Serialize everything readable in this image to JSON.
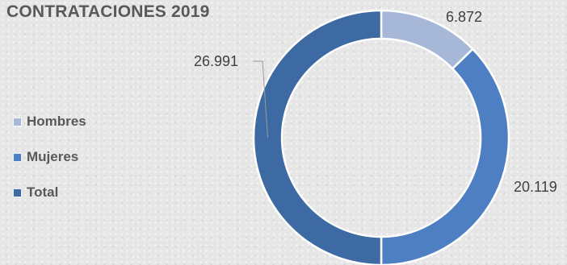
{
  "chart_data": {
    "type": "pie",
    "variant": "donut",
    "title": "CONTRATACIONES 2019",
    "categories": [
      "Hombres",
      "Mujeres",
      "Total"
    ],
    "values": [
      6872,
      20119,
      26991
    ],
    "labels": [
      "6.872",
      "20.119",
      "26.991"
    ],
    "colors": [
      "#a6b7d8",
      "#4e7fc2",
      "#3e6aa3"
    ],
    "legend_position": "left"
  }
}
